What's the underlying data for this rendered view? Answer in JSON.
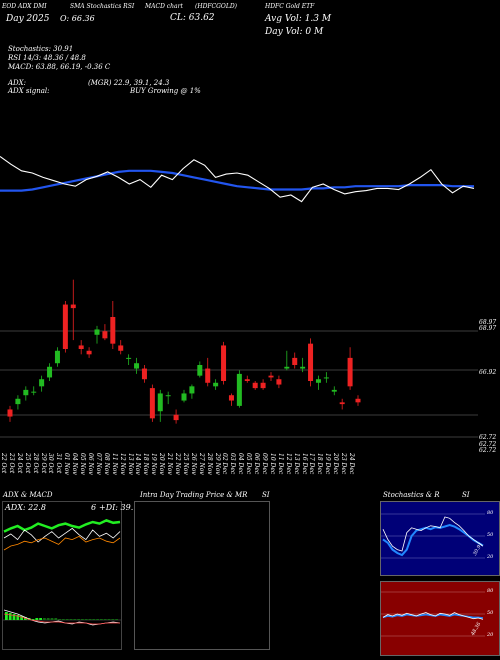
{
  "header": {
    "line1": [
      "EOD ADX DMI",
      "SMA Stochastics RSI",
      "MACD chart",
      "(HDFCGOLD)",
      "HDFC Gold ETF"
    ],
    "open_text": "O: 66.36",
    "close_text": "CL: 63.62",
    "avg_vol_text": "Avg Vol: 1.3 M",
    "day_vol_text": "Day Vol: 0 M",
    "day_text": "Day 2025",
    "stochastics_text": "Stochastics: 30.91",
    "rsi_text": "RSI 14/3: 48.36 / 48.8",
    "macd_text": "MACD: 63.88, 66.19, -0.36  C",
    "adx_text": "ADX:",
    "adx_values": "(MGR) 22.9, 39.1, 24.3",
    "adx_signal_label": "ADX signal:",
    "adx_signal_value": "BUY Growing @ 1%"
  },
  "price_labels": [
    "68.97",
    "68.97",
    "66.92",
    "62.72",
    "62.72",
    "62.72"
  ],
  "x_labels": [
    "22 Oct",
    "23 Oct",
    "24 Oct",
    "25 Oct",
    "28 Oct",
    "29 Oct",
    "30 Oct",
    "31 Oct",
    "01 Nov",
    "04 Nov",
    "05 Nov",
    "06 Nov",
    "07 Nov",
    "08 Nov",
    "11 Nov",
    "12 Nov",
    "13 Nov",
    "14 Nov",
    "18 Nov",
    "19 Nov",
    "20 Nov",
    "21 Nov",
    "22 Nov",
    "25 Nov",
    "26 Nov",
    "27 Nov",
    "28 Nov",
    "29 Nov",
    "02 Dec",
    "03 Dec",
    "04 Dec",
    "05 Dec",
    "06 Dec",
    "09 Dec",
    "10 Dec",
    "11 Dec",
    "12 Dec",
    "13 Dec",
    "16 Dec",
    "17 Dec",
    "18 Dec",
    "19 Dec",
    "20 Dec",
    "23 Dec",
    "24 Dec"
  ],
  "panels": {
    "adx_macd_title": "ADX & MACD",
    "adx_value": "ADX: 22.8",
    "adx_extra": "6",
    "adx_di": "+DI: 39.",
    "intraday_title": "Intra Day Trading Price & MR",
    "intraday_title2": "SI",
    "stoch_title": "Stochastics & R",
    "stoch_title2": "SI",
    "stoch_ticks": [
      "80",
      "50",
      "20"
    ],
    "stoch_value": "30.91",
    "rsi_ticks": [
      "80",
      "50",
      "20"
    ],
    "rsi_value": "48.36"
  },
  "colors": {
    "up": "#22bb22",
    "down": "#ee2222",
    "sma": "#2255ee",
    "stoch_bg": "#000077",
    "rsi_bg": "#880000"
  },
  "chart_data": {
    "type": "candlestick",
    "title": "HDFC Gold ETF (HDFCGOLD)",
    "ylim": [
      62.0,
      71.0
    ],
    "categories": [
      "22 Oct",
      "23 Oct",
      "24 Oct",
      "25 Oct",
      "28 Oct",
      "29 Oct",
      "30 Oct",
      "31 Oct",
      "01 Nov",
      "04 Nov",
      "05 Nov",
      "06 Nov",
      "07 Nov",
      "08 Nov",
      "11 Nov",
      "12 Nov",
      "13 Nov",
      "14 Nov",
      "18 Nov",
      "19 Nov",
      "20 Nov",
      "21 Nov",
      "22 Nov",
      "25 Nov",
      "26 Nov",
      "27 Nov",
      "28 Nov",
      "29 Nov",
      "02 Dec",
      "03 Dec",
      "04 Dec",
      "05 Dec",
      "06 Dec",
      "09 Dec",
      "10 Dec",
      "11 Dec",
      "12 Dec",
      "13 Dec",
      "16 Dec",
      "17 Dec",
      "18 Dec",
      "19 Dec",
      "20 Dec",
      "23 Dec",
      "24 Dec"
    ],
    "candles": [
      {
        "o": 64.0,
        "h": 64.2,
        "l": 63.3,
        "c": 63.6
      },
      {
        "o": 64.3,
        "h": 64.8,
        "l": 64.0,
        "c": 64.6
      },
      {
        "o": 64.8,
        "h": 65.3,
        "l": 64.5,
        "c": 65.1
      },
      {
        "o": 65.0,
        "h": 65.3,
        "l": 64.8,
        "c": 65.0
      },
      {
        "o": 65.3,
        "h": 65.9,
        "l": 65.0,
        "c": 65.7
      },
      {
        "o": 65.8,
        "h": 66.6,
        "l": 65.6,
        "c": 66.4
      },
      {
        "o": 66.6,
        "h": 67.5,
        "l": 66.4,
        "c": 67.3
      },
      {
        "o": 69.9,
        "h": 70.1,
        "l": 67.2,
        "c": 67.4
      },
      {
        "o": 69.9,
        "h": 71.3,
        "l": 67.9,
        "c": 69.7
      },
      {
        "o": 67.6,
        "h": 67.9,
        "l": 67.1,
        "c": 67.4
      },
      {
        "o": 67.3,
        "h": 67.5,
        "l": 66.9,
        "c": 67.1
      },
      {
        "o": 68.2,
        "h": 68.7,
        "l": 67.7,
        "c": 68.5
      },
      {
        "o": 68.4,
        "h": 68.8,
        "l": 67.9,
        "c": 68.0
      },
      {
        "o": 69.2,
        "h": 70.1,
        "l": 67.4,
        "c": 67.7
      },
      {
        "o": 67.6,
        "h": 67.9,
        "l": 67.1,
        "c": 67.3
      },
      {
        "o": 66.9,
        "h": 67.1,
        "l": 66.5,
        "c": 66.9
      },
      {
        "o": 66.3,
        "h": 66.9,
        "l": 66.0,
        "c": 66.6
      },
      {
        "o": 66.3,
        "h": 66.5,
        "l": 65.5,
        "c": 65.7
      },
      {
        "o": 65.2,
        "h": 65.4,
        "l": 63.3,
        "c": 63.5
      },
      {
        "o": 63.9,
        "h": 65.1,
        "l": 63.3,
        "c": 64.9
      },
      {
        "o": 64.8,
        "h": 65.0,
        "l": 64.3,
        "c": 64.8
      },
      {
        "o": 63.7,
        "h": 64.0,
        "l": 63.2,
        "c": 63.4
      },
      {
        "o": 64.5,
        "h": 65.1,
        "l": 64.4,
        "c": 64.9
      },
      {
        "o": 64.9,
        "h": 65.4,
        "l": 64.6,
        "c": 65.3
      },
      {
        "o": 65.9,
        "h": 66.7,
        "l": 65.8,
        "c": 66.5
      },
      {
        "o": 66.3,
        "h": 66.9,
        "l": 65.3,
        "c": 65.5
      },
      {
        "o": 65.3,
        "h": 65.7,
        "l": 65.1,
        "c": 65.5
      },
      {
        "o": 67.6,
        "h": 67.8,
        "l": 65.4,
        "c": 65.6
      },
      {
        "o": 64.8,
        "h": 64.9,
        "l": 64.2,
        "c": 64.5
      },
      {
        "o": 64.2,
        "h": 66.2,
        "l": 64.1,
        "c": 66.0
      },
      {
        "o": 65.7,
        "h": 65.9,
        "l": 65.5,
        "c": 65.6
      },
      {
        "o": 65.5,
        "h": 65.6,
        "l": 65.1,
        "c": 65.2
      },
      {
        "o": 65.5,
        "h": 65.7,
        "l": 65.1,
        "c": 65.2
      },
      {
        "o": 65.9,
        "h": 66.1,
        "l": 65.6,
        "c": 65.8
      },
      {
        "o": 65.7,
        "h": 65.9,
        "l": 65.2,
        "c": 65.4
      },
      {
        "o": 66.3,
        "h": 67.3,
        "l": 66.2,
        "c": 66.4
      },
      {
        "o": 66.9,
        "h": 67.2,
        "l": 66.3,
        "c": 66.5
      },
      {
        "o": 66.3,
        "h": 66.9,
        "l": 66.1,
        "c": 66.4
      },
      {
        "o": 67.7,
        "h": 68.0,
        "l": 65.3,
        "c": 65.6
      },
      {
        "o": 65.5,
        "h": 65.9,
        "l": 65.1,
        "c": 65.7
      },
      {
        "o": 65.8,
        "h": 66.1,
        "l": 65.5,
        "c": 65.8
      },
      {
        "o": 65.0,
        "h": 65.3,
        "l": 64.8,
        "c": 65.1
      },
      {
        "o": 64.4,
        "h": 64.6,
        "l": 64.0,
        "c": 64.3
      },
      {
        "o": 66.9,
        "h": 67.5,
        "l": 65.1,
        "c": 65.3
      },
      {
        "o": 64.6,
        "h": 64.8,
        "l": 64.2,
        "c": 64.4
      }
    ],
    "stochastic_line": [
      85,
      78,
      72,
      70,
      66,
      63,
      60,
      58,
      64,
      67,
      71,
      66,
      60,
      64,
      57,
      68,
      64,
      74,
      82,
      77,
      66,
      69,
      70,
      68,
      62,
      56,
      48,
      50,
      44,
      57,
      60,
      55,
      51,
      53,
      54,
      56,
      56,
      55,
      60,
      66,
      73,
      60,
      52,
      58,
      56
    ],
    "sma_line": [
      54,
      54,
      54,
      55,
      57,
      59,
      61,
      63,
      65,
      67,
      69,
      71,
      72,
      72,
      72,
      71,
      70,
      68,
      66,
      64,
      62,
      60,
      58,
      57,
      56,
      55,
      55,
      55,
      55,
      56,
      56,
      57,
      57,
      58,
      58,
      58,
      58,
      58,
      59,
      59,
      59,
      59,
      58,
      58,
      58
    ],
    "stoch_panel": [
      60,
      45,
      35,
      30,
      28,
      55,
      62,
      60,
      58,
      62,
      65,
      64,
      62,
      78,
      76,
      70,
      65,
      58,
      50,
      45,
      40,
      35
    ],
    "rsi_panel": [
      48,
      52,
      50,
      53,
      51,
      54,
      52,
      50,
      53,
      55,
      52,
      50,
      54,
      53,
      51,
      55,
      52,
      50,
      48,
      46,
      47,
      45
    ]
  }
}
